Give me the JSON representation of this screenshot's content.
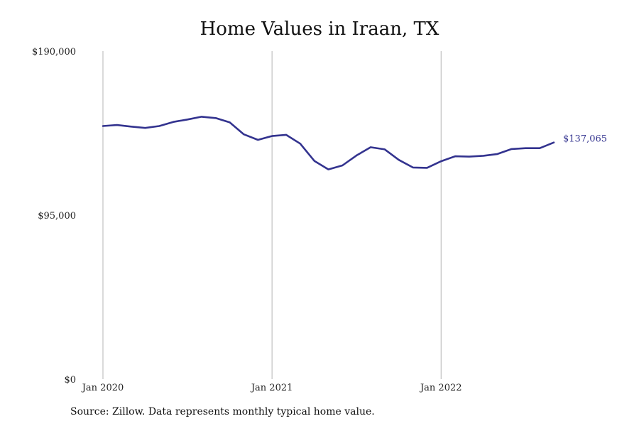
{
  "chart_data": {
    "type": "line",
    "title": "Home Values in Iraan, TX",
    "xlabel": "",
    "ylabel": "",
    "ylim": [
      0,
      190000
    ],
    "yticks": [
      {
        "value": 0,
        "label": "$0"
      },
      {
        "value": 95000,
        "label": "$95,000"
      },
      {
        "value": 190000,
        "label": "$190,000"
      }
    ],
    "xticks": [
      {
        "index": 0,
        "label": "Jan 2020"
      },
      {
        "index": 12,
        "label": "Jan 2021"
      },
      {
        "index": 24,
        "label": "Jan 2022"
      }
    ],
    "grid": "vertical",
    "line_color": "#33338f",
    "series": [
      {
        "values": [
          146600,
          147200,
          146300,
          145500,
          146600,
          149000,
          150400,
          152000,
          151200,
          148700,
          141800,
          138600,
          140800,
          141500,
          136400,
          126400,
          121500,
          123800,
          129600,
          134300,
          133100,
          127000,
          122600,
          122400,
          126200,
          129100,
          128900,
          129400,
          130400,
          133300,
          133800,
          133800,
          137065
        ]
      }
    ],
    "end_label": "$137,065"
  },
  "source": "Source: Zillow. Data represents monthly typical home value."
}
